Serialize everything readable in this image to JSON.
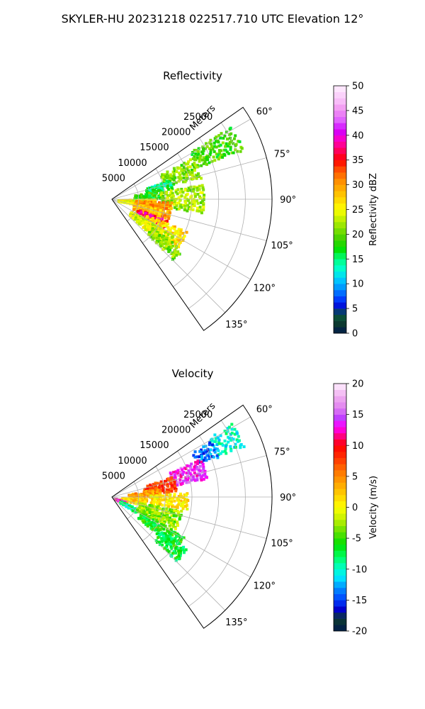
{
  "figure": {
    "title": "SKYLER-HU  20231218  022517.710 UTC Elevation 12°"
  },
  "chart_data": [
    {
      "type": "heatmap",
      "subtype": "polar-sector-ppi",
      "title": "Reflectivity",
      "range_label": "Meters",
      "theta_ticks": [
        "60°",
        "75°",
        "90°",
        "105°",
        "120°",
        "135°"
      ],
      "theta_tick_values": [
        60,
        75,
        90,
        105,
        120,
        135
      ],
      "theta_range_deg": [
        55,
        145
      ],
      "r_ticks": [
        "5000",
        "10000",
        "15000",
        "20000",
        "25000"
      ],
      "r_tick_values": [
        5000,
        10000,
        15000,
        20000,
        25000
      ],
      "r_max": 30000,
      "grid": true,
      "colorbar": {
        "label": "Reflectivity dBZ",
        "range": [
          0,
          50
        ],
        "ticks": [
          "0",
          "5",
          "10",
          "15",
          "20",
          "25",
          "30",
          "35",
          "40",
          "45",
          "50"
        ],
        "tick_values": [
          0,
          5,
          10,
          15,
          20,
          25,
          30,
          35,
          40,
          45,
          50
        ],
        "stops": [
          {
            "v": 0,
            "c": "#001a4d"
          },
          {
            "v": 2,
            "c": "#0d3b2e"
          },
          {
            "v": 4,
            "c": "#0a5c40"
          },
          {
            "v": 5,
            "c": "#0000cc"
          },
          {
            "v": 7,
            "c": "#0040ff"
          },
          {
            "v": 9,
            "c": "#0090ff"
          },
          {
            "v": 11,
            "c": "#00d0ff"
          },
          {
            "v": 13,
            "c": "#00ffd0"
          },
          {
            "v": 15,
            "c": "#00ff80"
          },
          {
            "v": 17,
            "c": "#00e000"
          },
          {
            "v": 19,
            "c": "#40d000"
          },
          {
            "v": 21,
            "c": "#80e000"
          },
          {
            "v": 23,
            "c": "#c0f000"
          },
          {
            "v": 25,
            "c": "#ffff00"
          },
          {
            "v": 27,
            "c": "#ffd800"
          },
          {
            "v": 29,
            "c": "#ffb000"
          },
          {
            "v": 31,
            "c": "#ff8800"
          },
          {
            "v": 33,
            "c": "#ff5000"
          },
          {
            "v": 35,
            "c": "#ff0000"
          },
          {
            "v": 37,
            "c": "#ff0060"
          },
          {
            "v": 39,
            "c": "#ff00c0"
          },
          {
            "v": 41,
            "c": "#d000ff"
          },
          {
            "v": 43,
            "c": "#e060ff"
          },
          {
            "v": 45,
            "c": "#f090f0"
          },
          {
            "v": 47,
            "c": "#f8c0f8"
          },
          {
            "v": 50,
            "c": "#fff0ff"
          }
        ]
      },
      "echo_regions": [
        {
          "az": [
            58,
            68
          ],
          "r": [
            17000,
            26000
          ],
          "value": 19
        },
        {
          "az": [
            62,
            76
          ],
          "r": [
            10000,
            17000
          ],
          "value": 21
        },
        {
          "az": [
            70,
            80
          ],
          "r": [
            6500,
            11000
          ],
          "value": 15
        },
        {
          "az": [
            77,
            88
          ],
          "r": [
            4000,
            9000
          ],
          "value": 18
        },
        {
          "az": [
            80,
            98
          ],
          "r": [
            9000,
            17000
          ],
          "value": 22
        },
        {
          "az": [
            88,
            100
          ],
          "r": [
            1000,
            8000
          ],
          "value": 25
        },
        {
          "az": [
            92,
            108
          ],
          "r": [
            4000,
            11000
          ],
          "value": 30
        },
        {
          "az": [
            100,
            115
          ],
          "r": [
            4000,
            9000
          ],
          "value": 28
        },
        {
          "az": [
            110,
            122
          ],
          "r": [
            5000,
            11000
          ],
          "value": 37
        },
        {
          "az": [
            113,
            126
          ],
          "r": [
            7000,
            15000
          ],
          "value": 27
        },
        {
          "az": [
            120,
            132
          ],
          "r": [
            4000,
            13000
          ],
          "value": 24
        },
        {
          "az": [
            125,
            134
          ],
          "r": [
            9000,
            16000
          ],
          "value": 21
        }
      ]
    },
    {
      "type": "heatmap",
      "subtype": "polar-sector-ppi",
      "title": "Velocity",
      "range_label": "Meters",
      "theta_ticks": [
        "60°",
        "75°",
        "90°",
        "105°",
        "120°",
        "135°"
      ],
      "theta_tick_values": [
        60,
        75,
        90,
        105,
        120,
        135
      ],
      "theta_range_deg": [
        55,
        145
      ],
      "r_ticks": [
        "5000",
        "10000",
        "15000",
        "20000",
        "25000"
      ],
      "r_tick_values": [
        5000,
        10000,
        15000,
        20000,
        25000
      ],
      "r_max": 30000,
      "grid": true,
      "colorbar": {
        "label": "Velocity (m/s)",
        "range": [
          -20,
          20
        ],
        "ticks": [
          "-20",
          "-15",
          "-10",
          "-5",
          "0",
          "5",
          "10",
          "15",
          "20"
        ],
        "tick_values": [
          -20,
          -15,
          -10,
          -5,
          0,
          5,
          10,
          15,
          20
        ],
        "stops": [
          {
            "v": -20,
            "c": "#001a4d"
          },
          {
            "v": -18,
            "c": "#0d3b2e"
          },
          {
            "v": -16.5,
            "c": "#0000cc"
          },
          {
            "v": -15,
            "c": "#0040ff"
          },
          {
            "v": -13,
            "c": "#0090ff"
          },
          {
            "v": -11.5,
            "c": "#00e0ff"
          },
          {
            "v": -10,
            "c": "#00ffd0"
          },
          {
            "v": -8,
            "c": "#00ff60"
          },
          {
            "v": -6,
            "c": "#00e000"
          },
          {
            "v": -4,
            "c": "#60e000"
          },
          {
            "v": -2,
            "c": "#c0f000"
          },
          {
            "v": 0,
            "c": "#ffff00"
          },
          {
            "v": 2,
            "c": "#ffd000"
          },
          {
            "v": 4,
            "c": "#ffa000"
          },
          {
            "v": 6,
            "c": "#ff7000"
          },
          {
            "v": 8,
            "c": "#ff3000"
          },
          {
            "v": 10,
            "c": "#ff0000"
          },
          {
            "v": 11.5,
            "c": "#ff0080"
          },
          {
            "v": 13,
            "c": "#ff00ff"
          },
          {
            "v": 14.5,
            "c": "#c040ff"
          },
          {
            "v": 16,
            "c": "#e080f0"
          },
          {
            "v": 18,
            "c": "#f0b0f0"
          },
          {
            "v": 20,
            "c": "#fff0ff"
          }
        ]
      },
      "echo_regions": [
        {
          "az": [
            58,
            68
          ],
          "r": [
            21000,
            26000
          ],
          "value": -10
        },
        {
          "az": [
            60,
            68
          ],
          "r": [
            17000,
            21000
          ],
          "value": -14
        },
        {
          "az": [
            66,
            78
          ],
          "r": [
            11000,
            18000
          ],
          "value": 14
        },
        {
          "az": [
            70,
            84
          ],
          "r": [
            6000,
            12000
          ],
          "value": 8
        },
        {
          "az": [
            78,
            90
          ],
          "r": [
            3000,
            9000
          ],
          "value": 4
        },
        {
          "az": [
            86,
            98
          ],
          "r": [
            7000,
            14000
          ],
          "value": 1
        },
        {
          "az": [
            90,
            104
          ],
          "r": [
            1500,
            6000
          ],
          "value": 2
        },
        {
          "az": [
            105,
            116
          ],
          "r": [
            300,
            2500
          ],
          "value": 12
        },
        {
          "az": [
            113,
            122
          ],
          "r": [
            1500,
            5000
          ],
          "value": -9
        },
        {
          "az": [
            100,
            118
          ],
          "r": [
            5000,
            13000
          ],
          "value": -3
        },
        {
          "az": [
            118,
            128
          ],
          "r": [
            6000,
            15000
          ],
          "value": -6
        },
        {
          "az": [
            124,
            134
          ],
          "r": [
            11000,
            17000
          ],
          "value": -7
        }
      ]
    }
  ]
}
